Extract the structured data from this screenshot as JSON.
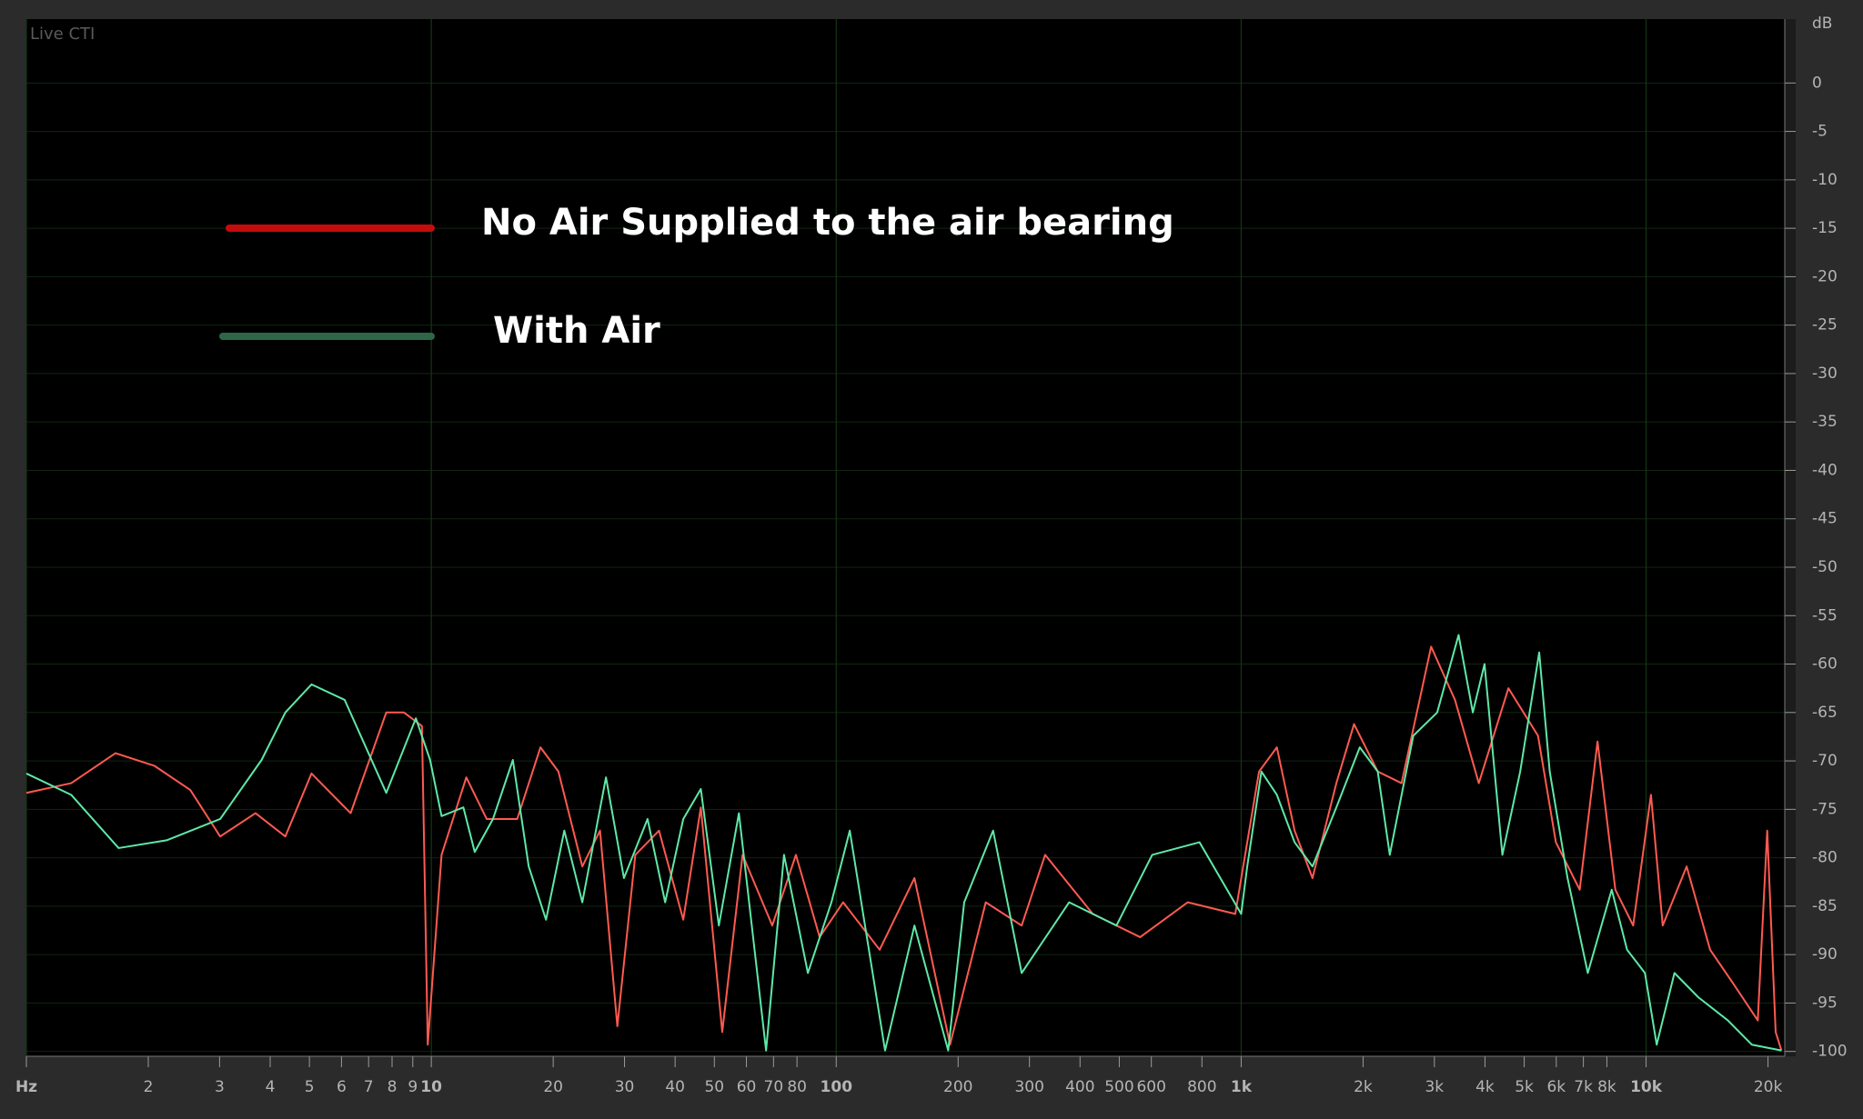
{
  "chart_data": {
    "type": "line",
    "overlay_label": "Live CTI",
    "y_label": "dB",
    "x_scale": "log",
    "xlim": [
      1,
      22000
    ],
    "ylim": [
      -100.5,
      6.6
    ],
    "xticks": [
      {
        "value": 1,
        "label": "Hz"
      },
      2,
      3,
      4,
      5,
      6,
      7,
      8,
      9,
      10,
      20,
      30,
      40,
      50,
      60,
      70,
      80,
      100,
      200,
      300,
      400,
      500,
      600,
      800,
      {
        "value": 1000,
        "label": "1k"
      },
      {
        "value": 2000,
        "label": "2k"
      },
      {
        "value": 3000,
        "label": "3k"
      },
      {
        "value": 4000,
        "label": "4k"
      },
      {
        "value": 5000,
        "label": "5k"
      },
      {
        "value": 6000,
        "label": "6k"
      },
      {
        "value": 7000,
        "label": "7k"
      },
      {
        "value": 8000,
        "label": "8k"
      },
      {
        "value": 10000,
        "label": "10k"
      },
      {
        "value": 20000,
        "label": "20k"
      }
    ],
    "yticks": [
      0,
      -5,
      -10,
      -15,
      -20,
      -25,
      -30,
      -35,
      -40,
      -45,
      -50,
      -55,
      -60,
      -65,
      -70,
      -75,
      -80,
      -85,
      -90,
      -95,
      -100
    ],
    "grid": true,
    "legend": "upper left",
    "series": [
      {
        "name": "No Air Supplied to the air bearing",
        "color": "#ff5a50",
        "legend_color": "#c40c0c",
        "x": [
          1,
          1.29,
          1.66,
          2.07,
          2.54,
          3.01,
          3.68,
          4.36,
          5.06,
          6.32,
          7.74,
          8.56,
          9.48,
          9.8,
          10.6,
          12.2,
          13.7,
          16.3,
          18.6,
          20.6,
          23.6,
          26.1,
          28.8,
          31.9,
          36.5,
          41.9,
          46.3,
          52.3,
          58.7,
          69.5,
          79.5,
          91,
          104,
          128,
          156,
          191,
          234,
          287,
          328,
          430,
          563,
          738,
          967,
          1107,
          1225,
          1355,
          1500,
          1718,
          1900,
          2174,
          2489,
          2945,
          3373,
          3862,
          4571,
          5408,
          5986,
          6855,
          7586,
          8395,
          9290,
          10280,
          10990,
          12590,
          14390,
          16480,
          18870,
          19910,
          20890,
          21590
        ],
        "values": [
          -73.3,
          -72.3,
          -69.2,
          -70.5,
          -73.0,
          -77.8,
          -75.4,
          -77.8,
          -71.3,
          -75.4,
          -65.0,
          -65.0,
          -66.4,
          -99.3,
          -79.7,
          -71.7,
          -76.0,
          -76.0,
          -68.6,
          -71.1,
          -80.9,
          -77.2,
          -97.4,
          -79.7,
          -77.2,
          -86.4,
          -74.8,
          -98.0,
          -79.7,
          -87.0,
          -79.7,
          -88.2,
          -84.6,
          -89.5,
          -82.1,
          -99.3,
          -84.6,
          -87.0,
          -79.7,
          -85.8,
          -88.2,
          -84.6,
          -85.8,
          -71.1,
          -68.6,
          -77.2,
          -82.1,
          -72.3,
          -66.2,
          -71.1,
          -72.3,
          -58.2,
          -63.7,
          -72.3,
          -62.5,
          -67.4,
          -78.4,
          -83.3,
          -68.0,
          -83.3,
          -87.0,
          -73.5,
          -87.0,
          -80.9,
          -89.5,
          -93.1,
          -96.8,
          -77.2,
          -98.0,
          -99.9
        ]
      },
      {
        "name": "With Air",
        "color": "#5ee8a8",
        "legend_color": "#2e6648",
        "x": [
          1,
          1.29,
          1.69,
          2.22,
          3.01,
          3.81,
          4.36,
          5.06,
          6.11,
          7.74,
          9.16,
          9.93,
          10.6,
          12.0,
          12.8,
          14.2,
          15.9,
          17.4,
          19.2,
          21.3,
          23.6,
          27.0,
          29.9,
          34.2,
          37.8,
          41.9,
          46.3,
          51.3,
          57.5,
          67.1,
          74.3,
          85.1,
          97.3,
          108,
          132,
          156,
          189,
          207,
          244,
          287,
          376,
          492,
          603,
          789,
          1000,
          1035,
          1122,
          1225,
          1355,
          1500,
          1718,
          1963,
          2174,
          2328,
          2661,
          3048,
          3443,
          3733,
          3990,
          4416,
          4887,
          5445,
          5781,
          6397,
          7178,
          8224,
          8974,
          9934,
          10620,
          11750,
          13450,
          15920,
          18240,
          21590
        ],
        "values": [
          -71.3,
          -73.5,
          -79.0,
          -78.2,
          -76.0,
          -69.9,
          -65.0,
          -62.1,
          -63.7,
          -73.3,
          -65.6,
          -69.9,
          -75.7,
          -74.8,
          -79.4,
          -76.0,
          -69.9,
          -80.9,
          -86.4,
          -77.2,
          -84.6,
          -71.7,
          -82.1,
          -76.0,
          -84.6,
          -76.0,
          -72.9,
          -87.0,
          -75.4,
          -99.9,
          -79.7,
          -91.9,
          -84.6,
          -77.2,
          -99.9,
          -87.0,
          -99.9,
          -84.6,
          -77.2,
          -91.9,
          -84.6,
          -87.0,
          -79.7,
          -78.4,
          -85.8,
          -80.9,
          -71.1,
          -73.5,
          -78.4,
          -80.9,
          -74.8,
          -68.6,
          -71.1,
          -79.7,
          -67.4,
          -65.0,
          -57.0,
          -65.0,
          -60.0,
          -79.7,
          -71.1,
          -58.8,
          -71.1,
          -82.1,
          -91.9,
          -83.3,
          -89.5,
          -91.9,
          -99.3,
          -91.9,
          -94.4,
          -96.8,
          -99.3,
          -99.9
        ]
      }
    ]
  }
}
